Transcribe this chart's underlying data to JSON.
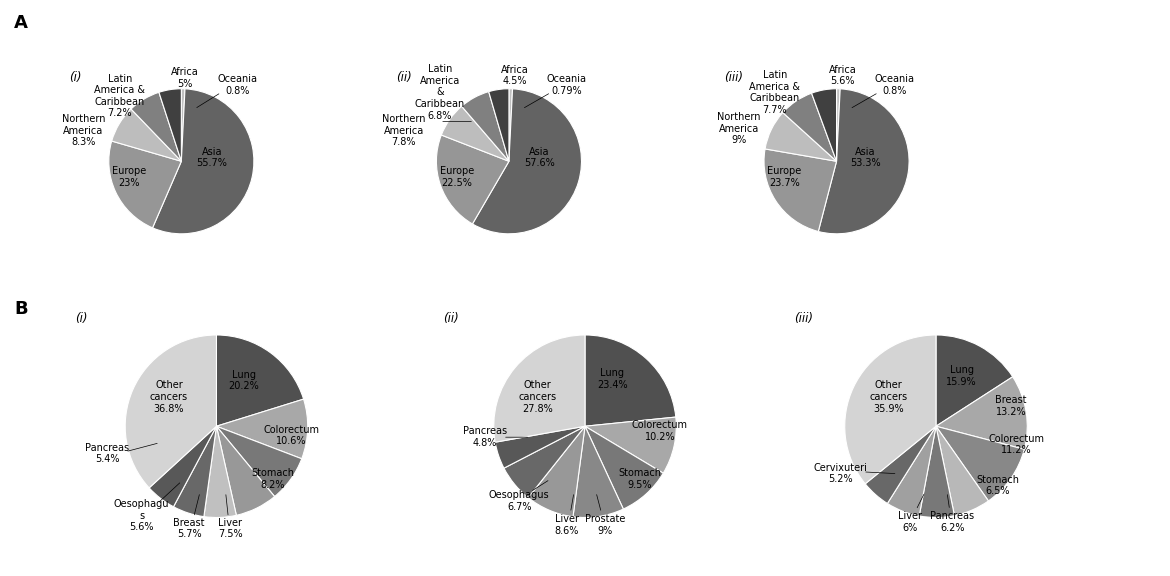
{
  "A_i_values": [
    0.8,
    55.7,
    23.0,
    8.3,
    7.2,
    5.0
  ],
  "A_ii_values": [
    0.79,
    57.6,
    22.5,
    7.8,
    6.8,
    4.5
  ],
  "A_iii_values": [
    0.8,
    53.3,
    23.7,
    9.0,
    7.7,
    5.6
  ],
  "A_colors": [
    "#c0c0c0",
    "#636363",
    "#969696",
    "#bdbdbd",
    "#808080",
    "#404040"
  ],
  "B_i_values": [
    20.2,
    10.6,
    8.2,
    7.5,
    5.7,
    5.6,
    5.4,
    36.8
  ],
  "B_ii_values": [
    23.4,
    10.2,
    9.5,
    9.0,
    8.6,
    6.7,
    4.8,
    27.8
  ],
  "B_iii_values": [
    15.9,
    13.2,
    11.2,
    6.5,
    6.2,
    6.0,
    5.2,
    35.9
  ],
  "B_colors_i": [
    "#505050",
    "#a8a8a8",
    "#787878",
    "#989898",
    "#c0c0c0",
    "#686868",
    "#585858",
    "#d4d4d4"
  ],
  "B_colors_ii": [
    "#505050",
    "#a8a8a8",
    "#787878",
    "#888888",
    "#989898",
    "#686868",
    "#585858",
    "#d4d4d4"
  ],
  "B_colors_iii": [
    "#505050",
    "#a8a8a8",
    "#888888",
    "#b8b8b8",
    "#787878",
    "#a0a0a0",
    "#686868",
    "#d4d4d4"
  ],
  "bg_color": "#ffffff",
  "lfs": 7.0
}
